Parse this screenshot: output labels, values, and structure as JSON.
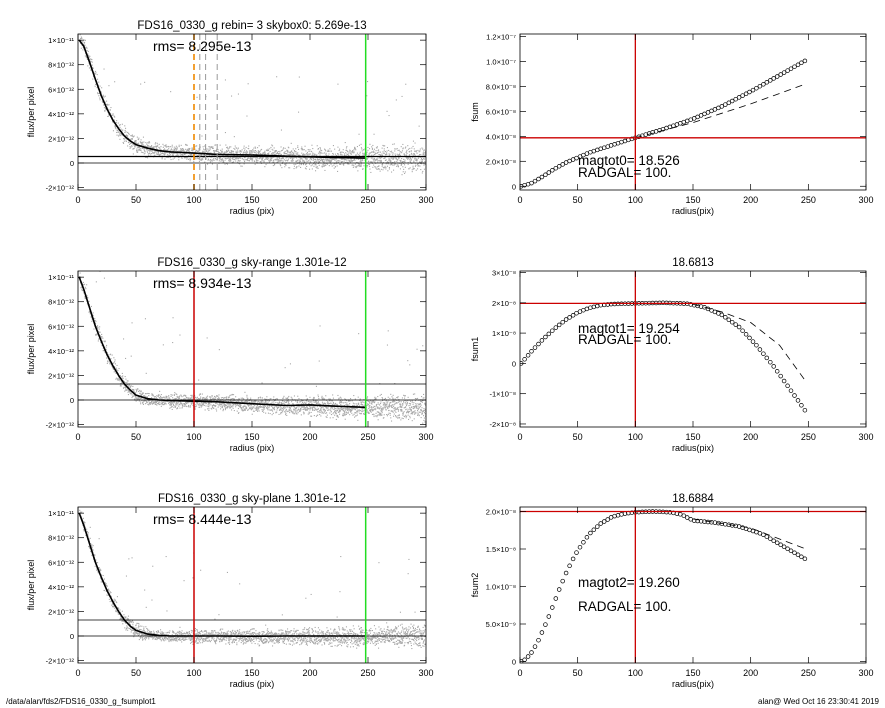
{
  "footer": {
    "left": "/data/alan/fds2/FDS16_0330_g_fsumplot1",
    "right": "alan@  Wed Oct 16 23:30:41 2019"
  },
  "colors": {
    "points": "#a8a8a8",
    "profile": "#000000",
    "green": "#22dd22",
    "red": "#cc0000",
    "orange": "#ee8800",
    "dash_gray": "#999999"
  },
  "chart_data": [
    {
      "id": "p1",
      "type": "scatter",
      "title": "FDS16_0330_g rebin= 3    skybox0:  5.269e-13",
      "annotation": "rms= 8.295e-13",
      "xlabel": "radius (pix)",
      "ylabel": "flux/per pixel",
      "xlim": [
        0,
        300
      ],
      "ylim": [
        -2.2e-12,
        1.05e-11
      ],
      "xticks": [
        [
          0,
          "0"
        ],
        [
          50,
          "50"
        ],
        [
          100,
          "100"
        ],
        [
          150,
          "150"
        ],
        [
          200,
          "200"
        ],
        [
          250,
          "250"
        ],
        [
          300,
          "300"
        ]
      ],
      "yticks": [
        [
          -2e-12,
          "-2×10⁻¹²"
        ],
        [
          0,
          "0"
        ],
        [
          2e-12,
          "2×10⁻¹²"
        ],
        [
          4e-12,
          "4×10⁻¹²"
        ],
        [
          6e-12,
          "6×10⁻¹²"
        ],
        [
          8e-12,
          "8×10⁻¹²"
        ],
        [
          1e-11,
          "1×10⁻¹¹"
        ]
      ],
      "profile": [
        [
          1,
          1e-11
        ],
        [
          5,
          9.5e-12
        ],
        [
          10,
          8.2e-12
        ],
        [
          15,
          6.8e-12
        ],
        [
          20,
          5.5e-12
        ],
        [
          25,
          4.4e-12
        ],
        [
          30,
          3.5e-12
        ],
        [
          35,
          2.8e-12
        ],
        [
          40,
          2.2e-12
        ],
        [
          45,
          1.8e-12
        ],
        [
          50,
          1.5e-12
        ],
        [
          60,
          1.2e-12
        ],
        [
          70,
          1e-12
        ],
        [
          80,
          9e-13
        ],
        [
          90,
          8.5e-13
        ],
        [
          100,
          8e-13
        ],
        [
          120,
          7e-13
        ],
        [
          150,
          6.5e-13
        ],
        [
          180,
          5.5e-13
        ],
        [
          200,
          5e-13
        ],
        [
          220,
          4.5e-13
        ],
        [
          248,
          4e-13
        ]
      ],
      "scatter_spread": 0.35,
      "hlines": [
        {
          "y": 5.269e-13,
          "color": "#000000",
          "width": 1.2
        },
        {
          "y": 0,
          "color": "#000000",
          "width": 0.8
        }
      ],
      "vlines": [
        {
          "x": 248,
          "color": "#22dd22",
          "width": 1.5,
          "dash": ""
        },
        {
          "x": 100,
          "color": "#ee8800",
          "width": 1.6,
          "dash": "6,4"
        },
        {
          "x": 105,
          "color": "#999999",
          "width": 1,
          "dash": "6,4"
        },
        {
          "x": 110,
          "color": "#999999",
          "width": 1,
          "dash": "6,4"
        },
        {
          "x": 120,
          "color": "#999999",
          "width": 1,
          "dash": "6,4"
        }
      ]
    },
    {
      "id": "p2",
      "type": "scatter",
      "title": "FDS16_0330_g sky-range  1.301e-12",
      "annotation": "rms= 8.934e-13",
      "xlabel": "radius (pix)",
      "ylabel": "flux/per pixel",
      "xlim": [
        0,
        300
      ],
      "ylim": [
        -2.2e-12,
        1.05e-11
      ],
      "xticks": [
        [
          0,
          "0"
        ],
        [
          50,
          "50"
        ],
        [
          100,
          "100"
        ],
        [
          150,
          "150"
        ],
        [
          200,
          "200"
        ],
        [
          250,
          "250"
        ],
        [
          300,
          "300"
        ]
      ],
      "yticks": [
        [
          -2e-12,
          "-2×10⁻¹²"
        ],
        [
          0,
          "0"
        ],
        [
          2e-12,
          "2×10⁻¹²"
        ],
        [
          4e-12,
          "4×10⁻¹²"
        ],
        [
          6e-12,
          "6×10⁻¹²"
        ],
        [
          8e-12,
          "8×10⁻¹²"
        ],
        [
          1e-11,
          "1×10⁻¹¹"
        ]
      ],
      "profile": [
        [
          1,
          1e-11
        ],
        [
          5,
          9e-12
        ],
        [
          10,
          7.5e-12
        ],
        [
          15,
          6e-12
        ],
        [
          20,
          4.8e-12
        ],
        [
          25,
          3.7e-12
        ],
        [
          30,
          2.8e-12
        ],
        [
          35,
          2e-12
        ],
        [
          40,
          1.3e-12
        ],
        [
          45,
          8e-13
        ],
        [
          50,
          4e-13
        ],
        [
          60,
          1e-13
        ],
        [
          70,
          0
        ],
        [
          80,
          -5e-14
        ],
        [
          100,
          -1e-13
        ],
        [
          120,
          -1.5e-13
        ],
        [
          150,
          -3e-13
        ],
        [
          180,
          -4.5e-13
        ],
        [
          200,
          -4e-13
        ],
        [
          220,
          -5e-13
        ],
        [
          248,
          -6e-13
        ]
      ],
      "scatter_spread": 0.32,
      "hlines": [
        {
          "y": 1.301e-12,
          "color": "#000000",
          "width": 0.8
        },
        {
          "y": 0,
          "color": "#000000",
          "width": 0.8
        }
      ],
      "vlines": [
        {
          "x": 248,
          "color": "#22dd22",
          "width": 1.5,
          "dash": ""
        },
        {
          "x": 100,
          "color": "#cc0000",
          "width": 1.5,
          "dash": ""
        }
      ]
    },
    {
      "id": "p3",
      "type": "scatter",
      "title": "FDS16_0330_g sky-plane  1.301e-12",
      "annotation": "rms= 8.444e-13",
      "xlabel": "radius (pix)",
      "ylabel": "flux/per pixel",
      "xlim": [
        0,
        300
      ],
      "ylim": [
        -2.2e-12,
        1.05e-11
      ],
      "xticks": [
        [
          0,
          "0"
        ],
        [
          50,
          "50"
        ],
        [
          100,
          "100"
        ],
        [
          150,
          "150"
        ],
        [
          200,
          "200"
        ],
        [
          250,
          "250"
        ],
        [
          300,
          "300"
        ]
      ],
      "yticks": [
        [
          -2e-12,
          "-2×10⁻¹²"
        ],
        [
          0,
          "0"
        ],
        [
          2e-12,
          "2×10⁻¹²"
        ],
        [
          4e-12,
          "4×10⁻¹²"
        ],
        [
          6e-12,
          "6×10⁻¹²"
        ],
        [
          8e-12,
          "8×10⁻¹²"
        ],
        [
          1e-11,
          "1×10⁻¹¹"
        ]
      ],
      "profile": [
        [
          1,
          1e-11
        ],
        [
          5,
          9e-12
        ],
        [
          10,
          7.5e-12
        ],
        [
          15,
          6e-12
        ],
        [
          20,
          4.8e-12
        ],
        [
          25,
          3.7e-12
        ],
        [
          30,
          2.8e-12
        ],
        [
          35,
          2e-12
        ],
        [
          40,
          1.3e-12
        ],
        [
          45,
          8e-13
        ],
        [
          50,
          4.5e-13
        ],
        [
          60,
          1.5e-13
        ],
        [
          70,
          5e-14
        ],
        [
          80,
          0
        ],
        [
          100,
          0
        ],
        [
          120,
          0
        ],
        [
          150,
          -2e-14
        ],
        [
          180,
          0
        ],
        [
          200,
          0
        ],
        [
          220,
          0
        ],
        [
          248,
          0
        ]
      ],
      "scatter_spread": 0.28,
      "hlines": [
        {
          "y": 1.301e-12,
          "color": "#000000",
          "width": 0.8
        },
        {
          "y": 0,
          "color": "#000000",
          "width": 0.8
        }
      ],
      "vlines": [
        {
          "x": 248,
          "color": "#22dd22",
          "width": 1.5,
          "dash": ""
        },
        {
          "x": 100,
          "color": "#cc0000",
          "width": 1.5,
          "dash": ""
        }
      ]
    },
    {
      "id": "p4",
      "type": "line",
      "title": "",
      "annotation": [
        "magtot0=  18.526",
        "RADGAL=    100."
      ],
      "xlabel": "radius(pix)",
      "ylabel": "fsum",
      "xlim": [
        0,
        300
      ],
      "ylim": [
        -3e-09,
        1.22e-07
      ],
      "xticks": [
        [
          0,
          "0"
        ],
        [
          50,
          "50"
        ],
        [
          100,
          "100"
        ],
        [
          150,
          "150"
        ],
        [
          200,
          "200"
        ],
        [
          250,
          "250"
        ],
        [
          300,
          "300"
        ]
      ],
      "yticks": [
        [
          0,
          "0"
        ],
        [
          2e-08,
          "2.0×10⁻⁸"
        ],
        [
          4e-08,
          "4.0×10⁻⁸"
        ],
        [
          6e-08,
          "6.0×10⁻⁸"
        ],
        [
          8e-08,
          "8.0×10⁻⁸"
        ],
        [
          1e-07,
          "1.0×10⁻⁷"
        ],
        [
          1.2e-07,
          "1.2×10⁻⁷"
        ]
      ],
      "curve": [
        [
          1,
          0
        ],
        [
          10,
          2.5e-09
        ],
        [
          20,
          8e-09
        ],
        [
          30,
          1.4e-08
        ],
        [
          40,
          1.9e-08
        ],
        [
          50,
          2.3e-08
        ],
        [
          60,
          2.7e-08
        ],
        [
          70,
          3e-08
        ],
        [
          80,
          3.3e-08
        ],
        [
          90,
          3.6e-08
        ],
        [
          100,
          3.88e-08
        ],
        [
          125,
          4.6e-08
        ],
        [
          150,
          5.4e-08
        ],
        [
          175,
          6.4e-08
        ],
        [
          200,
          7.6e-08
        ],
        [
          225,
          8.9e-08
        ],
        [
          248,
          1.01e-07
        ]
      ],
      "dashed": [
        [
          100,
          3.88e-08
        ],
        [
          150,
          5.1e-08
        ],
        [
          200,
          6.6e-08
        ],
        [
          248,
          8.2e-08
        ]
      ],
      "hlines": [
        {
          "y": 3.88e-08,
          "color": "#cc0000",
          "width": 1.3
        }
      ],
      "vlines": [
        {
          "x": 100,
          "color": "#cc0000",
          "width": 1.3
        }
      ]
    },
    {
      "id": "p5",
      "type": "line",
      "title": "18.6813",
      "annotation": [
        "magtot1=  19.254",
        "RADGAL=    100."
      ],
      "xlabel": "radius(pix)",
      "ylabel": "fsum1",
      "xlim": [
        0,
        300
      ],
      "ylim": [
        -2.1e-08,
        3.05e-08
      ],
      "xticks": [
        [
          0,
          "0"
        ],
        [
          50,
          "50"
        ],
        [
          100,
          "100"
        ],
        [
          150,
          "150"
        ],
        [
          200,
          "200"
        ],
        [
          250,
          "250"
        ],
        [
          300,
          "300"
        ]
      ],
      "yticks": [
        [
          -2e-08,
          "-2×10⁻⁸"
        ],
        [
          -1e-08,
          "-1×10⁻⁸"
        ],
        [
          0,
          "0"
        ],
        [
          1e-08,
          "1×10⁻⁸"
        ],
        [
          2e-08,
          "2×10⁻⁸"
        ],
        [
          3e-08,
          "3×10⁻⁸"
        ]
      ],
      "curve": [
        [
          1,
          0
        ],
        [
          10,
          4e-09
        ],
        [
          20,
          8e-09
        ],
        [
          30,
          1.15e-08
        ],
        [
          40,
          1.45e-08
        ],
        [
          50,
          1.68e-08
        ],
        [
          60,
          1.83e-08
        ],
        [
          70,
          1.92e-08
        ],
        [
          80,
          1.96e-08
        ],
        [
          100,
          1.98e-08
        ],
        [
          125,
          2e-08
        ],
        [
          145,
          1.97e-08
        ],
        [
          160,
          1.85e-08
        ],
        [
          175,
          1.6e-08
        ],
        [
          190,
          1.2e-08
        ],
        [
          205,
          6e-09
        ],
        [
          220,
          -1e-09
        ],
        [
          235,
          -9e-09
        ],
        [
          248,
          -1.6e-08
        ]
      ],
      "dashed": [
        [
          150,
          1.95e-08
        ],
        [
          175,
          1.7e-08
        ],
        [
          200,
          1.35e-08
        ],
        [
          225,
          6e-09
        ],
        [
          248,
          -6e-09
        ]
      ],
      "hlines": [
        {
          "y": 1.98e-08,
          "color": "#cc0000",
          "width": 1.3
        }
      ],
      "vlines": [
        {
          "x": 100,
          "color": "#cc0000",
          "width": 1.3
        }
      ]
    },
    {
      "id": "p6",
      "type": "line",
      "title": "18.6884",
      "annotation": [
        "magtot2=  19.260",
        "RADGAL=    100."
      ],
      "xlabel": "radius(pix)",
      "ylabel": "fsum2",
      "xlim": [
        0,
        300
      ],
      "ylim": [
        -2e-10,
        2.06e-08
      ],
      "xticks": [
        [
          0,
          "0"
        ],
        [
          50,
          "50"
        ],
        [
          100,
          "100"
        ],
        [
          150,
          "150"
        ],
        [
          200,
          "200"
        ],
        [
          250,
          "250"
        ],
        [
          300,
          "300"
        ]
      ],
      "yticks": [
        [
          0,
          "0"
        ],
        [
          5e-09,
          "5.0×10⁻⁹"
        ],
        [
          1e-08,
          "1.0×10⁻⁸"
        ],
        [
          1.5e-08,
          "1.5×10⁻⁸"
        ],
        [
          2e-08,
          "2.0×10⁻⁸"
        ]
      ],
      "curve": [
        [
          1,
          0
        ],
        [
          5,
          3e-10
        ],
        [
          10,
          1.2e-09
        ],
        [
          15,
          2.5e-09
        ],
        [
          20,
          4.2e-09
        ],
        [
          25,
          6e-09
        ],
        [
          30,
          8e-09
        ],
        [
          35,
          1e-08
        ],
        [
          40,
          1.18e-08
        ],
        [
          45,
          1.34e-08
        ],
        [
          50,
          1.48e-08
        ],
        [
          60,
          1.7e-08
        ],
        [
          70,
          1.84e-08
        ],
        [
          80,
          1.93e-08
        ],
        [
          90,
          1.97e-08
        ],
        [
          100,
          1.99e-08
        ],
        [
          115,
          2e-08
        ],
        [
          130,
          1.99e-08
        ],
        [
          140,
          1.96e-08
        ],
        [
          150,
          1.88e-08
        ],
        [
          170,
          1.85e-08
        ],
        [
          190,
          1.8e-08
        ],
        [
          210,
          1.7e-08
        ],
        [
          230,
          1.52e-08
        ],
        [
          248,
          1.36e-08
        ]
      ],
      "dashed": [
        [
          150,
          1.9e-08
        ],
        [
          200,
          1.78e-08
        ],
        [
          248,
          1.5e-08
        ]
      ],
      "hlines": [
        {
          "y": 2e-08,
          "color": "#cc0000",
          "width": 1.3
        }
      ],
      "vlines": [
        {
          "x": 100,
          "color": "#cc0000",
          "width": 1.3
        }
      ]
    }
  ]
}
